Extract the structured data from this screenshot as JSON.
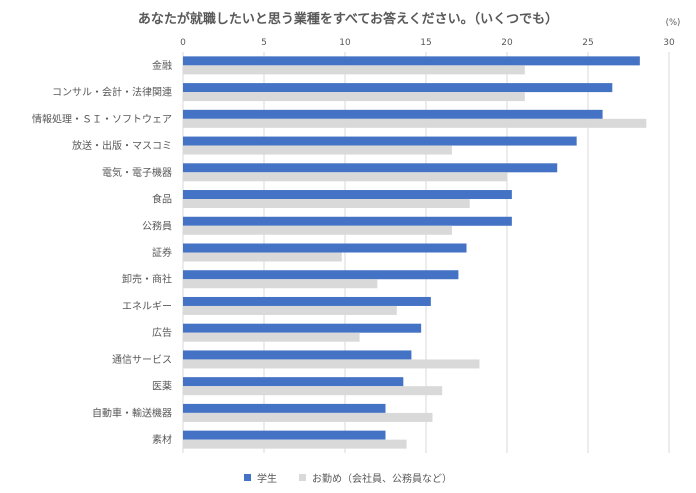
{
  "chart_data": {
    "type": "bar",
    "orientation": "horizontal",
    "title": "あなたが就職したいと思う業種をすべてお答えください。（いくつでも）",
    "unit": "(%)",
    "xlim": [
      0,
      30
    ],
    "xticks": [
      "0",
      "5",
      "10",
      "15",
      "20",
      "25",
      "30"
    ],
    "grid": true,
    "legend_position": "bottom",
    "categories": [
      "金融",
      "コンサル・会計・法律関連",
      "情報処理・ＳＩ・ソフトウェア",
      "放送・出版・マスコミ",
      "電気・電子機器",
      "食品",
      "公務員",
      "証券",
      "卸売・商社",
      "エネルギー",
      "広告",
      "通信サービス",
      "医薬",
      "自動車・輸送機器",
      "素材"
    ],
    "series": [
      {
        "name": "学生",
        "color": "#4472C4",
        "values": [
          28.2,
          26.5,
          25.9,
          24.3,
          23.1,
          20.3,
          20.3,
          17.5,
          17.0,
          15.3,
          14.7,
          14.1,
          13.6,
          12.5,
          12.5
        ]
      },
      {
        "name": "お勤め（会社員、公務員など）",
        "color": "#D9D9D9",
        "values": [
          21.1,
          21.1,
          28.6,
          16.6,
          20.0,
          17.7,
          16.6,
          9.8,
          12.0,
          13.2,
          10.9,
          18.3,
          16.0,
          15.4,
          13.8
        ]
      }
    ]
  }
}
